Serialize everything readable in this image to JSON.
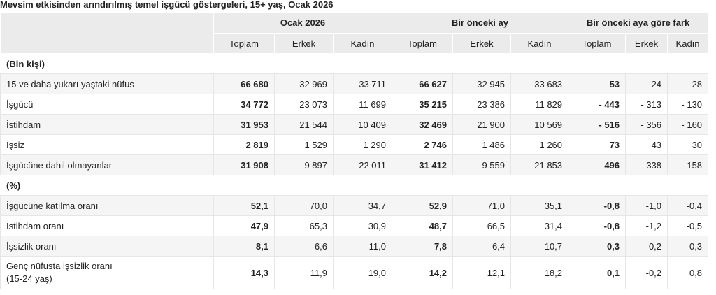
{
  "caption": "Mevsim etkisinden arındırılmış temel işgücü göstergeleri, 15+ yaş, Ocak 2026",
  "groups": [
    "Ocak 2026",
    "Bir önceki ay",
    "Bir önceki aya göre fark"
  ],
  "subheaders": [
    "Toplam",
    "Erkek",
    "Kadın",
    "Toplam",
    "Erkek",
    "Kadın",
    "Toplam",
    "Erkek",
    "Kadın"
  ],
  "section_thousand": "(Bin kişi)",
  "section_percent": "(%)",
  "rows": [
    {
      "label": "15 ve daha yukarı yaştaki nüfus",
      "values": [
        "66 680",
        "32 969",
        "33 711",
        "66 627",
        "32 945",
        "33 683",
        "53",
        "24",
        "28"
      ]
    },
    {
      "label": "İşgücü",
      "values": [
        "34 772",
        "23 073",
        "11 699",
        "35 215",
        "23 386",
        "11 829",
        "- 443",
        "- 313",
        "- 130"
      ]
    },
    {
      "label": "İstihdam",
      "values": [
        "31 953",
        "21 544",
        "10 409",
        "32 469",
        "21 900",
        "10 569",
        "- 516",
        "- 356",
        "- 160"
      ]
    },
    {
      "label": "İşsiz",
      "values": [
        "2 819",
        "1 529",
        "1 290",
        "2 746",
        "1 486",
        "1 260",
        "73",
        "43",
        "30"
      ]
    },
    {
      "label": "İşgücüne dahil olmayanlar",
      "values": [
        "31 908",
        "9 897",
        "22 011",
        "31 412",
        "9 559",
        "21 853",
        "496",
        "338",
        "158"
      ]
    }
  ],
  "rows_pct": [
    {
      "label": "İşgücüne katılma oranı",
      "values": [
        "52,1",
        "70,0",
        "34,7",
        "52,9",
        "71,0",
        "35,1",
        "-0,8",
        "-1,0",
        "-0,4"
      ]
    },
    {
      "label": "İstihdam oranı",
      "values": [
        "47,9",
        "65,3",
        "30,9",
        "48,7",
        "66,5",
        "31,4",
        "-0,8",
        "-1,2",
        "-0,5"
      ]
    },
    {
      "label": "İşsizlik oranı",
      "values": [
        "8,1",
        "6,6",
        "11,0",
        "7,8",
        "6,4",
        "10,7",
        "0,3",
        "0,2",
        "0,3"
      ]
    },
    {
      "label_line1": "Genç nüfusta işsizlik oranı",
      "label_line2": "(15-24 yaş)",
      "values": [
        "14,3",
        "11,9",
        "19,0",
        "14,2",
        "12,1",
        "18,2",
        "0,1",
        "-0,2",
        "0,8"
      ]
    }
  ]
}
